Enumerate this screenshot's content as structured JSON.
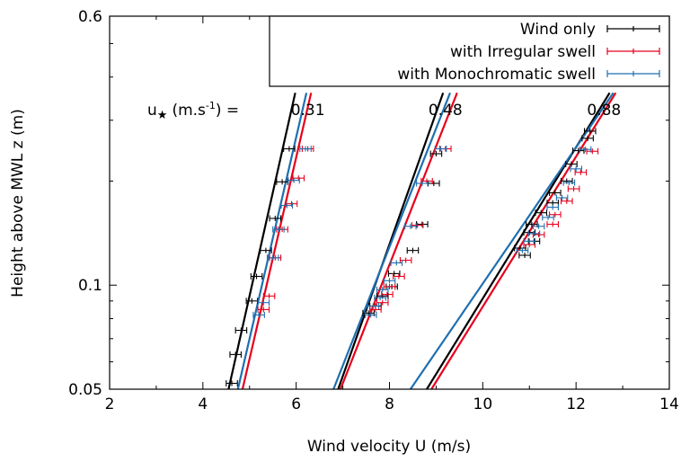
{
  "chart_data": {
    "type": "line",
    "xlabel": "Wind velocity U (m/s)",
    "ylabel": "Height above MWL z (m)",
    "xlim": [
      2,
      14
    ],
    "ylim": [
      0.05,
      0.6
    ],
    "yscale": "log",
    "xticks": [
      "2",
      "4",
      "6",
      "8",
      "10",
      "12",
      "14"
    ],
    "yticks": [
      {
        "value": 0.05,
        "label": "0.05"
      },
      {
        "value": 0.1,
        "label": "0.1"
      },
      {
        "value": 0.6,
        "label": "0.6"
      }
    ],
    "grid": false,
    "legend": {
      "position": "top-right"
    },
    "annotation_prefix": "u",
    "annotation_units": "(m.s",
    "annotation_exponent": "-1",
    "annotation_suffix": ") =",
    "ustar_labels": [
      {
        "text": "0.31",
        "x": 6.25
      },
      {
        "text": "0.48",
        "x": 9.2
      },
      {
        "text": "0.88",
        "x": 12.6
      }
    ],
    "series": [
      {
        "name": "Wind only",
        "color": "#000000",
        "points": [
          [
            4.62,
            0.052
          ],
          [
            4.7,
            0.063
          ],
          [
            4.82,
            0.074
          ],
          [
            5.05,
            0.09
          ],
          [
            5.15,
            0.106
          ],
          [
            5.35,
            0.126
          ],
          [
            5.55,
            0.156
          ],
          [
            5.7,
            0.199
          ],
          [
            5.85,
            0.248
          ]
        ],
        "xerr": 0.12,
        "lines": [
          [
            [
              4.55,
              0.05
            ],
            [
              5.98,
              0.36
            ]
          ],
          [
            [
              6.9,
              0.05
            ],
            [
              9.15,
              0.36
            ]
          ],
          [
            [
              8.8,
              0.05
            ],
            [
              12.72,
              0.36
            ]
          ]
        ]
      },
      {
        "name": "with Irregular swell",
        "color": "#e8001c",
        "points": [
          [
            5.3,
            0.085
          ],
          [
            5.42,
            0.093
          ],
          [
            5.55,
            0.12
          ],
          [
            5.7,
            0.145
          ],
          [
            5.9,
            0.172
          ],
          [
            6.05,
            0.204
          ],
          [
            6.25,
            0.248
          ]
        ],
        "xerr": 0.12,
        "lines": [
          [
            [
              4.85,
              0.05
            ],
            [
              6.32,
              0.36
            ]
          ],
          [
            [
              6.95,
              0.05
            ],
            [
              9.45,
              0.36
            ]
          ],
          [
            [
              8.9,
              0.05
            ],
            [
              12.85,
              0.36
            ]
          ]
        ]
      },
      {
        "name": "with Monochromatic swell",
        "color": "#1f6fb0",
        "points": [
          [
            5.2,
            0.082
          ],
          [
            5.3,
            0.089
          ],
          [
            5.5,
            0.12
          ],
          [
            5.62,
            0.145
          ],
          [
            5.8,
            0.17
          ],
          [
            5.95,
            0.201
          ],
          [
            6.2,
            0.248
          ]
        ],
        "xerr": 0.12,
        "lines": [
          [
            [
              4.75,
              0.05
            ],
            [
              6.22,
              0.36
            ]
          ],
          [
            [
              6.8,
              0.05
            ],
            [
              9.3,
              0.36
            ]
          ],
          [
            [
              8.45,
              0.05
            ],
            [
              12.8,
              0.36
            ]
          ]
        ]
      }
    ],
    "extra_points": {
      "black": [
        [
          7.55,
          0.083
        ],
        [
          7.7,
          0.087
        ],
        [
          7.85,
          0.093
        ],
        [
          8.05,
          0.099
        ],
        [
          8.1,
          0.108
        ],
        [
          8.5,
          0.126
        ],
        [
          8.7,
          0.15
        ],
        [
          8.95,
          0.197
        ],
        [
          9.0,
          0.24
        ],
        [
          10.8,
          0.128
        ],
        [
          10.9,
          0.122
        ],
        [
          11.1,
          0.134
        ],
        [
          11.0,
          0.142
        ],
        [
          11.05,
          0.15
        ],
        [
          11.25,
          0.162
        ],
        [
          11.5,
          0.173
        ],
        [
          11.55,
          0.185
        ],
        [
          11.8,
          0.2
        ],
        [
          11.9,
          0.224
        ],
        [
          12.05,
          0.245
        ],
        [
          12.25,
          0.266
        ],
        [
          12.3,
          0.279
        ]
      ],
      "red": [
        [
          7.7,
          0.085
        ],
        [
          7.85,
          0.089
        ],
        [
          7.95,
          0.094
        ],
        [
          8.0,
          0.099
        ],
        [
          8.2,
          0.106
        ],
        [
          8.35,
          0.118
        ],
        [
          8.6,
          0.149
        ],
        [
          8.8,
          0.2
        ],
        [
          9.2,
          0.248
        ],
        [
          11.0,
          0.131
        ],
        [
          11.2,
          0.14
        ],
        [
          11.5,
          0.15
        ],
        [
          11.55,
          0.16
        ],
        [
          11.8,
          0.175
        ],
        [
          11.95,
          0.19
        ],
        [
          12.1,
          0.212
        ],
        [
          12.35,
          0.244
        ]
      ],
      "blue": [
        [
          7.6,
          0.082
        ],
        [
          7.65,
          0.087
        ],
        [
          7.8,
          0.092
        ],
        [
          7.85,
          0.097
        ],
        [
          8.0,
          0.103
        ],
        [
          8.15,
          0.116
        ],
        [
          8.45,
          0.148
        ],
        [
          8.7,
          0.197
        ],
        [
          9.1,
          0.248
        ],
        [
          10.85,
          0.126
        ],
        [
          11.0,
          0.134
        ],
        [
          11.1,
          0.141
        ],
        [
          11.2,
          0.148
        ],
        [
          11.4,
          0.157
        ],
        [
          11.5,
          0.168
        ],
        [
          11.7,
          0.179
        ],
        [
          11.85,
          0.198
        ],
        [
          12.0,
          0.217
        ],
        [
          12.2,
          0.247
        ]
      ]
    }
  }
}
